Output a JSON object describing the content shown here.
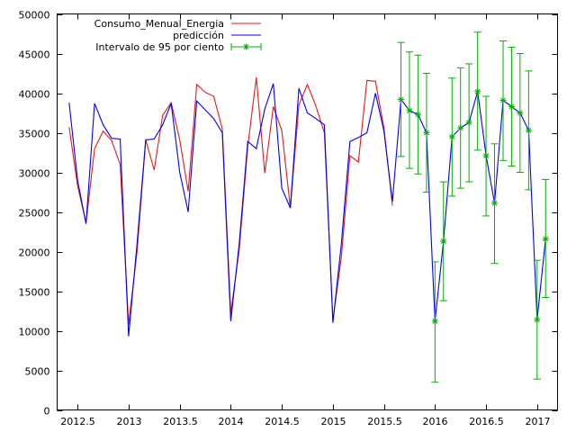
{
  "chart_data": {
    "type": "line",
    "title": "",
    "xlabel": "",
    "ylabel": "",
    "xlim": [
      2012.3,
      2017.2
    ],
    "ylim": [
      0,
      50000
    ],
    "x_ticks": [
      2012.5,
      2013,
      2013.5,
      2014,
      2014.5,
      2015,
      2015.5,
      2016,
      2016.5,
      2017
    ],
    "x_tick_labels": [
      "2012.5",
      "2013",
      "2013.5",
      "2014",
      "2014.5",
      "2015",
      "2015.5",
      "2016",
      "2016.5",
      "2017"
    ],
    "y_ticks": [
      0,
      5000,
      10000,
      15000,
      20000,
      25000,
      30000,
      35000,
      40000,
      45000,
      50000
    ],
    "y_tick_labels": [
      "0",
      "5000",
      "10000",
      "15000",
      "20000",
      "25000",
      "30000",
      "35000",
      "40000",
      "45000",
      "50000"
    ],
    "grid": false,
    "legend_position": "top-left",
    "series": [
      {
        "name": "Consumo_Menual_Energia",
        "color": "#e41a1c",
        "style": "line",
        "x": [
          2012.417,
          2012.5,
          2012.583,
          2012.667,
          2012.75,
          2012.833,
          2012.917,
          2013.0,
          2013.083,
          2013.167,
          2013.25,
          2013.333,
          2013.417,
          2013.5,
          2013.583,
          2013.667,
          2013.75,
          2013.833,
          2013.917,
          2014.0,
          2014.083,
          2014.167,
          2014.25,
          2014.333,
          2014.417,
          2014.5,
          2014.583,
          2014.667,
          2014.75,
          2014.833,
          2014.917,
          2015.0,
          2015.083,
          2015.167,
          2015.25,
          2015.333,
          2015.417,
          2015.5,
          2015.583
        ],
        "y": [
          35700,
          28300,
          23600,
          33000,
          35200,
          34000,
          31000,
          10800,
          20000,
          34100,
          30300,
          37200,
          38800,
          34100,
          27600,
          41100,
          40100,
          39600,
          35500,
          12200,
          20200,
          33300,
          42000,
          29900,
          38300,
          35300,
          25500,
          38500,
          41100,
          38400,
          35000,
          11300,
          19300,
          32100,
          31300,
          41600,
          41500,
          35600,
          25800
        ]
      },
      {
        "name": "predicción",
        "color": "#0000ff",
        "style": "line",
        "x": [
          2012.417,
          2012.5,
          2012.583,
          2012.667,
          2012.75,
          2012.833,
          2012.917,
          2013.0,
          2013.083,
          2013.167,
          2013.25,
          2013.333,
          2013.417,
          2013.5,
          2013.583,
          2013.667,
          2013.75,
          2013.833,
          2013.917,
          2014.0,
          2014.083,
          2014.167,
          2014.25,
          2014.333,
          2014.417,
          2014.5,
          2014.583,
          2014.667,
          2014.75,
          2014.833,
          2014.917,
          2015.0,
          2015.083,
          2015.167,
          2015.25,
          2015.333,
          2015.417,
          2015.5,
          2015.583,
          2015.667,
          2015.75,
          2015.833,
          2015.917,
          2016.0,
          2016.083,
          2016.167,
          2016.25,
          2016.333,
          2016.417,
          2016.5,
          2016.583,
          2016.667,
          2016.75,
          2016.833,
          2016.917,
          2017.0,
          2017.083
        ],
        "y": [
          38800,
          29000,
          23500,
          38700,
          36000,
          34300,
          34200,
          9300,
          21000,
          34100,
          34200,
          36000,
          38700,
          30000,
          25000,
          39000,
          37900,
          36800,
          35000,
          11200,
          21000,
          33900,
          33000,
          38000,
          41200,
          28000,
          25500,
          40600,
          37500,
          36800,
          36000,
          11000,
          21000,
          33900,
          34400,
          35000,
          40000,
          35200,
          26300,
          39200,
          37800,
          37300,
          35000,
          11200,
          21300,
          34500,
          35600,
          36300,
          40200,
          32100,
          26100,
          39100,
          38300,
          37500,
          35300,
          11400,
          21600
        ]
      },
      {
        "name": "Intervalo de 95 por ciento",
        "color": "#00b000",
        "style": "errorbar",
        "x": [
          2015.667,
          2015.75,
          2015.833,
          2015.917,
          2016.0,
          2016.083,
          2016.167,
          2016.25,
          2016.333,
          2016.417,
          2016.5,
          2016.583,
          2016.667,
          2016.75,
          2016.833,
          2016.917,
          2017.0,
          2017.083
        ],
        "y": [
          39200,
          37800,
          37300,
          35000,
          11200,
          21300,
          34500,
          35600,
          36300,
          40200,
          32100,
          26100,
          39100,
          38300,
          37500,
          35300,
          11400,
          21600
        ],
        "y_low": [
          32000,
          30500,
          29800,
          27500,
          3500,
          13800,
          27000,
          28000,
          28800,
          32800,
          24500,
          18500,
          31500,
          30800,
          30000,
          27800,
          3900,
          14200
        ],
        "y_high": [
          46400,
          45200,
          44800,
          42500,
          18700,
          28800,
          41900,
          43200,
          43700,
          47700,
          39600,
          33600,
          46600,
          45800,
          45000,
          42800,
          18900,
          29100
        ]
      }
    ]
  }
}
